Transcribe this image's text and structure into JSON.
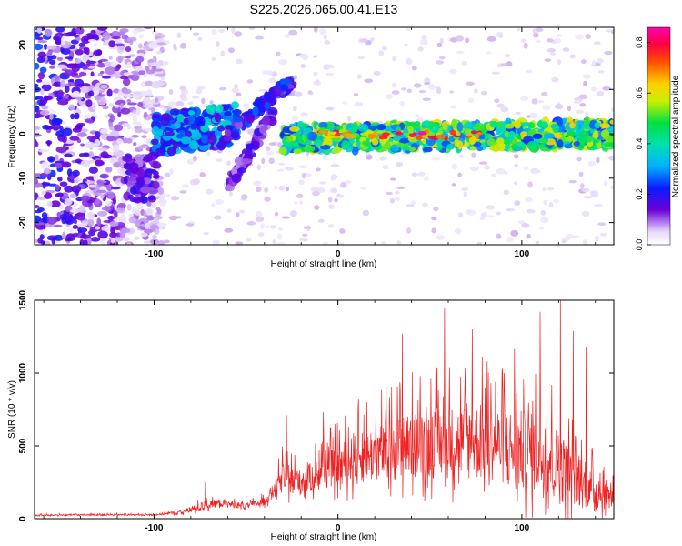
{
  "title": "S225.2026.065.00.41.E13",
  "chart_data": [
    {
      "type": "heatmap",
      "xlabel": "Height of straight line (km)",
      "ylabel": "Frequency (Hz)",
      "xlim": [
        -165,
        150
      ],
      "ylim": [
        -25,
        24
      ],
      "xticks": [
        -100,
        0,
        100
      ],
      "xtick_labels": [
        "-100",
        "0",
        "100"
      ],
      "yticks": [
        -20,
        -10,
        0,
        10,
        20
      ],
      "ytick_labels": [
        "-20",
        "-10",
        "0",
        "10",
        "20"
      ],
      "grid": false,
      "colorbar": {
        "label": "Normalized spectral amplitude",
        "ticks": [
          0.0,
          0.2,
          0.4,
          0.6,
          0.8
        ],
        "tick_labels": [
          "0.0",
          "0.2",
          "0.4",
          "0.6",
          "0.8"
        ],
        "range": [
          0,
          0.86
        ]
      },
      "features": [
        {
          "name": "diffuse-noise",
          "x_range": [
            -165,
            -95
          ],
          "freq_range": [
            -25,
            24
          ],
          "amplitude": 0.15
        },
        {
          "name": "noise-cluster",
          "x_range": [
            -115,
            -98
          ],
          "freq_range": [
            -15,
            -5
          ],
          "amplitude": 0.12
        },
        {
          "name": "signal-segment-a",
          "x_range": [
            -100,
            -55
          ],
          "freq": [
            0,
            2
          ],
          "amplitude": 0.28
        },
        {
          "name": "rising-chirp",
          "x_range": [
            -60,
            -25
          ],
          "freq": [
            0,
            12
          ],
          "amplitude": 0.2
        },
        {
          "name": "descending-branch",
          "x_range": [
            -60,
            -35
          ],
          "freq": [
            -12,
            5
          ],
          "amplitude": 0.15
        },
        {
          "name": "main-signal-band",
          "x_range": [
            -30,
            150
          ],
          "freq": [
            -1,
            0
          ],
          "amplitude": 0.45
        },
        {
          "name": "peak-region",
          "x_range": [
            -18,
            80
          ],
          "freq": [
            -1,
            0
          ],
          "amplitude": 0.86
        }
      ]
    },
    {
      "type": "line",
      "xlabel": "Height of straight line (km)",
      "ylabel": "SNR (10 * v/v)",
      "xlim": [
        -165,
        150
      ],
      "ylim": [
        0,
        1500
      ],
      "xticks": [
        -100,
        0,
        100
      ],
      "xtick_labels": [
        "-100",
        "0",
        "100"
      ],
      "yticks": [
        0,
        500,
        1000,
        1500
      ],
      "ytick_labels": [
        "0",
        "500",
        "1000",
        "1500"
      ],
      "grid": false,
      "color": "#ee2222",
      "envelope": {
        "x": [
          -165,
          -140,
          -120,
          -100,
          -85,
          -75,
          -65,
          -50,
          -40,
          -33,
          -30,
          -20,
          -10,
          0,
          10,
          25,
          40,
          55,
          70,
          85,
          100,
          110,
          120,
          130,
          140,
          150
        ],
        "baseline": [
          20,
          25,
          25,
          25,
          40,
          70,
          100,
          80,
          110,
          200,
          250,
          220,
          280,
          320,
          360,
          400,
          430,
          450,
          450,
          440,
          380,
          350,
          280,
          200,
          150,
          120
        ],
        "spread": [
          15,
          15,
          15,
          15,
          40,
          80,
          80,
          60,
          80,
          200,
          300,
          250,
          330,
          400,
          500,
          580,
          650,
          700,
          750,
          750,
          800,
          800,
          750,
          500,
          350,
          250
        ]
      },
      "peaks": [
        {
          "x": -72,
          "y": 250
        },
        {
          "x": -28,
          "y": 710
        },
        {
          "x": -8,
          "y": 730
        },
        {
          "x": 35,
          "y": 1270
        },
        {
          "x": 58,
          "y": 1450
        },
        {
          "x": 73,
          "y": 1300
        },
        {
          "x": 96,
          "y": 1170
        },
        {
          "x": 110,
          "y": 1420
        },
        {
          "x": 121,
          "y": 1520
        },
        {
          "x": 128,
          "y": 1290
        },
        {
          "x": 135,
          "y": 1180
        }
      ]
    }
  ]
}
